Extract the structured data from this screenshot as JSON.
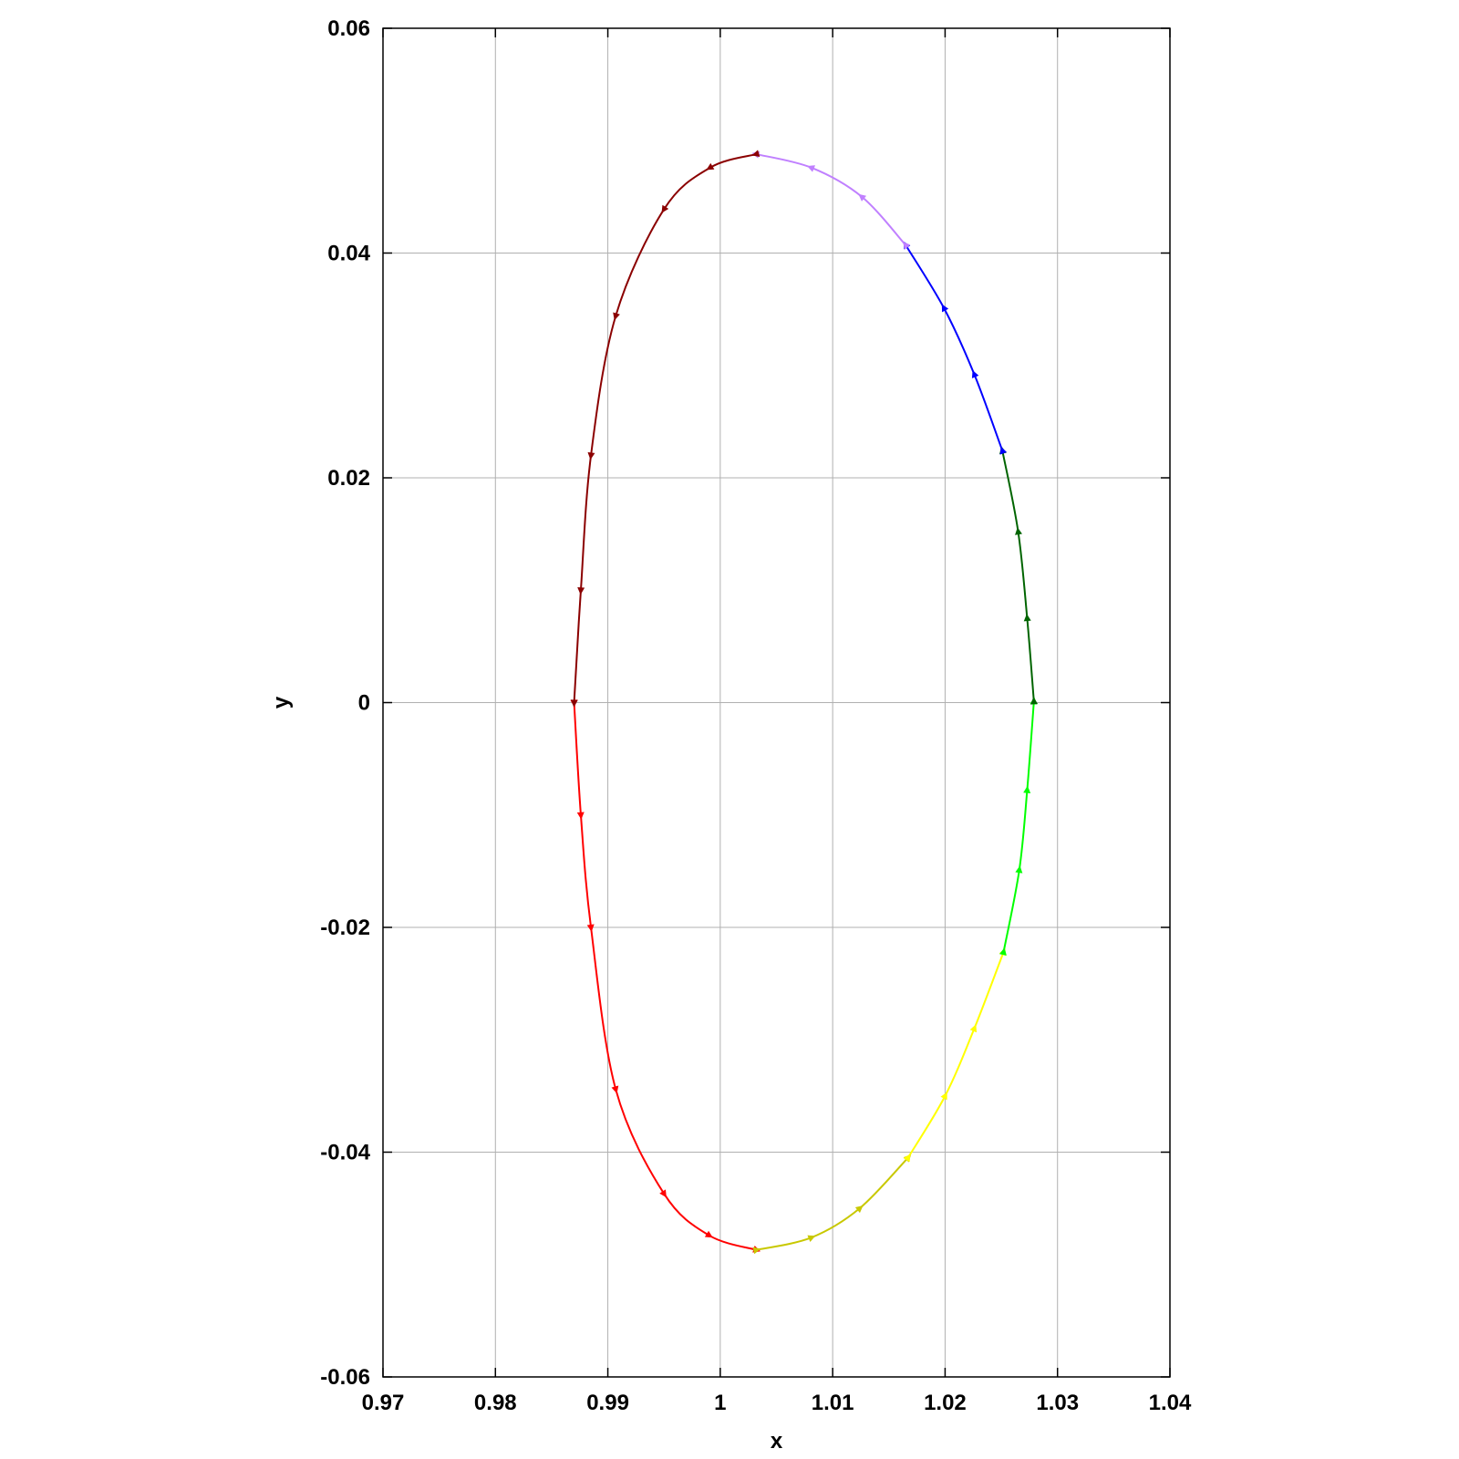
{
  "chart_data": {
    "type": "line",
    "title": "",
    "xlabel": "x",
    "ylabel": "y",
    "xlim": [
      0.97,
      1.04
    ],
    "ylim": [
      -0.06,
      0.06
    ],
    "grid": true,
    "legend": "none",
    "x_ticks": [
      0.97,
      0.98,
      0.99,
      1.0,
      1.01,
      1.02,
      1.03,
      1.04
    ],
    "x_tick_labels": [
      "0.97",
      "0.98",
      "0.99",
      "1",
      "1.01",
      "1.02",
      "1.03",
      "1.04"
    ],
    "y_ticks": [
      -0.06,
      -0.04,
      -0.02,
      0,
      0.02,
      0.04,
      0.06
    ],
    "y_tick_labels": [
      "-0.06",
      "-0.04",
      "-0.02",
      "0",
      "0.02",
      "0.04",
      "0.06"
    ],
    "series": [
      {
        "color": "#ff0000",
        "points": [
          [
            0.987,
            0.0
          ],
          [
            0.9876,
            -0.01
          ],
          [
            0.9885,
            -0.02
          ],
          [
            0.9907,
            -0.0344
          ],
          [
            0.995,
            -0.0437
          ],
          [
            0.999,
            -0.0474
          ],
          [
            1.0032,
            -0.0487
          ]
        ]
      },
      {
        "color": "#c8c800",
        "points": [
          [
            1.0032,
            -0.0487
          ],
          [
            1.0081,
            -0.0476
          ],
          [
            1.0124,
            -0.045
          ],
          [
            1.0167,
            -0.0405
          ]
        ]
      },
      {
        "color": "#ffff00",
        "points": [
          [
            1.0167,
            -0.0405
          ],
          [
            1.02,
            -0.035
          ],
          [
            1.0226,
            -0.029
          ],
          [
            1.0252,
            -0.0222
          ]
        ]
      },
      {
        "color": "#00ff00",
        "points": [
          [
            1.0252,
            -0.0222
          ],
          [
            1.0266,
            -0.0149
          ],
          [
            1.0273,
            -0.0078
          ],
          [
            1.0279,
            0.0001
          ]
        ]
      },
      {
        "color": "#006400",
        "points": [
          [
            1.0279,
            0.0001
          ],
          [
            1.0273,
            0.0075
          ],
          [
            1.0265,
            0.0152
          ],
          [
            1.0251,
            0.0224
          ]
        ]
      },
      {
        "color": "#0000ff",
        "points": [
          [
            1.0251,
            0.0224
          ],
          [
            1.0226,
            0.0292
          ],
          [
            1.0199,
            0.0351
          ],
          [
            1.0165,
            0.0407
          ]
        ]
      },
      {
        "color": "#c080ff",
        "points": [
          [
            1.0165,
            0.0407
          ],
          [
            1.0126,
            0.045
          ],
          [
            1.0081,
            0.0476
          ],
          [
            1.0032,
            0.0488
          ]
        ]
      },
      {
        "color": "#8b0000",
        "points": [
          [
            1.0032,
            0.0488
          ],
          [
            0.9991,
            0.0476
          ],
          [
            0.995,
            0.0439
          ],
          [
            0.9907,
            0.0344
          ],
          [
            0.9885,
            0.022
          ],
          [
            0.9876,
            0.01
          ],
          [
            0.987,
            0.0
          ]
        ]
      }
    ]
  }
}
